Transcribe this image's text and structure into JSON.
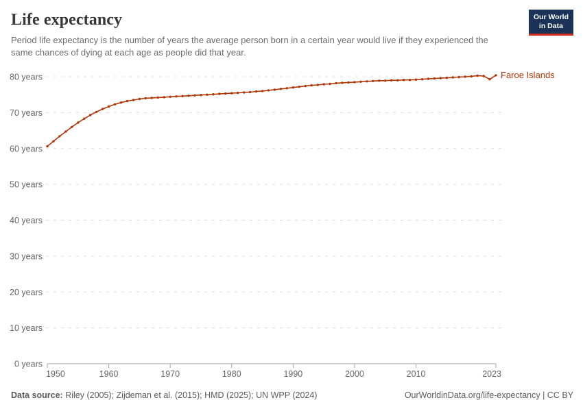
{
  "header": {
    "title": "Life expectancy",
    "subtitle": "Period life expectancy is the number of years the average person born in a certain year would live if they experienced the same chances of dying at each age as people did that year.",
    "logo": {
      "line1": "Our World",
      "line2": "in Data"
    }
  },
  "chart_data": {
    "type": "line",
    "title": "Life expectancy",
    "entity_label": "Faroe Islands",
    "xlabel": "",
    "ylabel": "",
    "x": {
      "min": 1950,
      "max": 2023,
      "ticks": [
        1950,
        1960,
        1970,
        1980,
        1990,
        2000,
        2010,
        2023
      ]
    },
    "y": {
      "min": 0,
      "max": 80,
      "ticks": [
        0,
        10,
        20,
        30,
        40,
        50,
        60,
        70,
        80
      ],
      "tick_suffix": " years"
    },
    "grid": "horizontal-dashed",
    "legend_position": "end-of-line-label",
    "series": [
      {
        "name": "Faroe Islands",
        "color": "#B13507",
        "start_year": 1950,
        "end_year": 2023,
        "values": [
          60.6,
          62.0,
          63.4,
          64.7,
          66.0,
          67.2,
          68.3,
          69.3,
          70.2,
          71.0,
          71.7,
          72.3,
          72.8,
          73.2,
          73.5,
          73.8,
          74.0,
          74.1,
          74.2,
          74.3,
          74.4,
          74.5,
          74.6,
          74.7,
          74.8,
          74.9,
          75.0,
          75.1,
          75.2,
          75.3,
          75.4,
          75.5,
          75.6,
          75.7,
          75.9,
          76.0,
          76.2,
          76.4,
          76.6,
          76.8,
          77.0,
          77.2,
          77.4,
          77.6,
          77.7,
          77.9,
          78.0,
          78.2,
          78.3,
          78.4,
          78.5,
          78.6,
          78.7,
          78.8,
          78.9,
          78.9,
          79.0,
          79.0,
          79.1,
          79.1,
          79.2,
          79.3,
          79.4,
          79.5,
          79.6,
          79.7,
          79.8,
          79.9,
          80.0,
          80.1,
          80.3,
          80.2,
          79.3,
          80.4
        ]
      }
    ]
  },
  "footer": {
    "source_label": "Data source:",
    "source_text": " Riley (2005); Zijdeman et al. (2015); HMD (2025); UN WPP (2024)",
    "rights": "OurWorldinData.org/life-expectancy | CC BY"
  },
  "colors": {
    "line": "#B13507",
    "title": "#383838",
    "subtitle": "#6B6B6B",
    "axis_label": "#666666",
    "gridline": "#DCDCDC",
    "axis_line": "#A5A5A5",
    "footer_text": "#5B5B5B",
    "logo_bg": "#1B3357",
    "logo_underline": "#CE2A1B",
    "background": "#FFFFFF"
  }
}
